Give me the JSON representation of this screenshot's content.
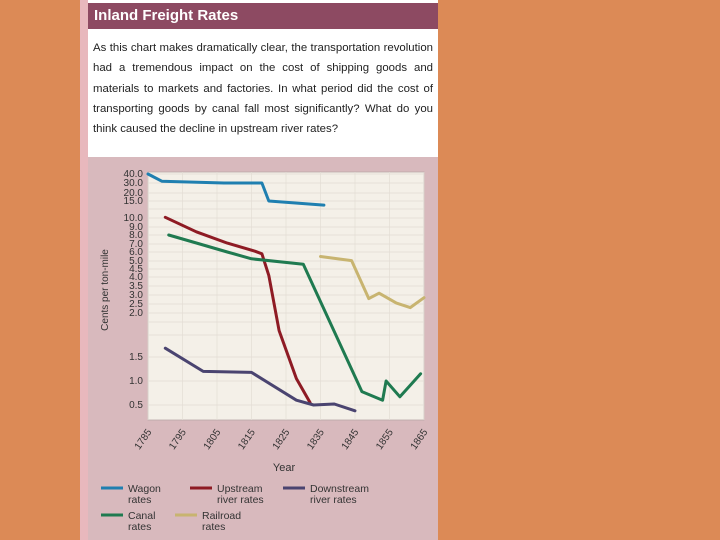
{
  "header": {
    "title": "Inland Freight Rates"
  },
  "intro": "As this chart makes dramatically clear, the transportation revolution had a tremendous impact on the cost of shipping goods and materials to markets and factories. In what period did the cost of transporting goods by canal fall most significantly? What do you think caused the decline in upstream river rates?",
  "colors": {
    "background": "#dc8a56",
    "header": "#8d4a62",
    "chart_bg": "#d8b9bd",
    "wagon": "#1f7fb0",
    "upstream": "#8e1b24",
    "downstream": "#4a4470",
    "canal": "#1f7a50",
    "railroad": "#c8b470"
  },
  "chart_data": {
    "type": "line",
    "title": "Inland Freight Rates",
    "xlabel": "Year",
    "ylabel": "Cents per ton-mile",
    "x_ticks": [
      "1785",
      "1795",
      "1805",
      "1815",
      "1825",
      "1835",
      "1845",
      "1855",
      "1865"
    ],
    "xlim": [
      1785,
      1865
    ],
    "y_ticks": [
      "40.0",
      "30.0",
      "20.0",
      "15.0",
      "10.0",
      "9.0",
      "8.0",
      "7.0",
      "6.0",
      "5.0",
      "4.5",
      "4.0",
      "3.5",
      "3.0",
      "2.5",
      "2.0",
      "1.5",
      "1.0",
      "0.5"
    ],
    "series": [
      {
        "name": "Wagon rates",
        "color": "#1f7fb0",
        "points": [
          [
            1785,
            40.0
          ],
          [
            1789,
            32.0
          ],
          [
            1807,
            30.0
          ],
          [
            1818,
            30.0
          ],
          [
            1820,
            15.0
          ],
          [
            1836,
            13.8
          ]
        ]
      },
      {
        "name": "Upstream river rates",
        "color": "#8e1b24",
        "points": [
          [
            1790,
            10.2
          ],
          [
            1799,
            8.4
          ],
          [
            1808,
            7.1
          ],
          [
            1816,
            6.1
          ],
          [
            1818,
            5.8
          ],
          [
            1820,
            4.1
          ],
          [
            1823,
            1.8
          ],
          [
            1828,
            1.05
          ],
          [
            1832,
            0.55
          ]
        ]
      },
      {
        "name": "Downstream river rates",
        "color": "#4a4470",
        "points": [
          [
            1790,
            1.6
          ],
          [
            1801,
            1.2
          ],
          [
            1815,
            1.18
          ],
          [
            1828,
            0.6
          ],
          [
            1833,
            0.5
          ],
          [
            1839,
            0.52
          ],
          [
            1845,
            0.38
          ]
        ]
      },
      {
        "name": "Canal rates",
        "color": "#1f7a50",
        "points": [
          [
            1791,
            8.0
          ],
          [
            1800,
            7.0
          ],
          [
            1808,
            6.0
          ],
          [
            1815,
            5.25
          ],
          [
            1830,
            4.8
          ],
          [
            1847,
            0.78
          ],
          [
            1853,
            0.6
          ],
          [
            1854,
            1.0
          ],
          [
            1858,
            0.67
          ],
          [
            1864,
            1.15
          ]
        ]
      },
      {
        "name": "Railroad rates",
        "color": "#c8b470",
        "points": [
          [
            1835,
            5.5
          ],
          [
            1844,
            5.05
          ],
          [
            1849,
            2.8
          ],
          [
            1852,
            3.1
          ],
          [
            1857,
            2.55
          ],
          [
            1861,
            2.3
          ],
          [
            1865,
            2.85
          ]
        ]
      }
    ],
    "legend": [
      {
        "label_lines": [
          "Wagon",
          "rates"
        ],
        "series": 0
      },
      {
        "label_lines": [
          "Upstream",
          "river rates"
        ],
        "series": 1
      },
      {
        "label_lines": [
          "Downstream",
          "river rates"
        ],
        "series": 2
      },
      {
        "label_lines": [
          "Canal",
          "rates"
        ],
        "series": 3
      },
      {
        "label_lines": [
          "Railroad",
          "rates"
        ],
        "series": 4
      }
    ]
  }
}
